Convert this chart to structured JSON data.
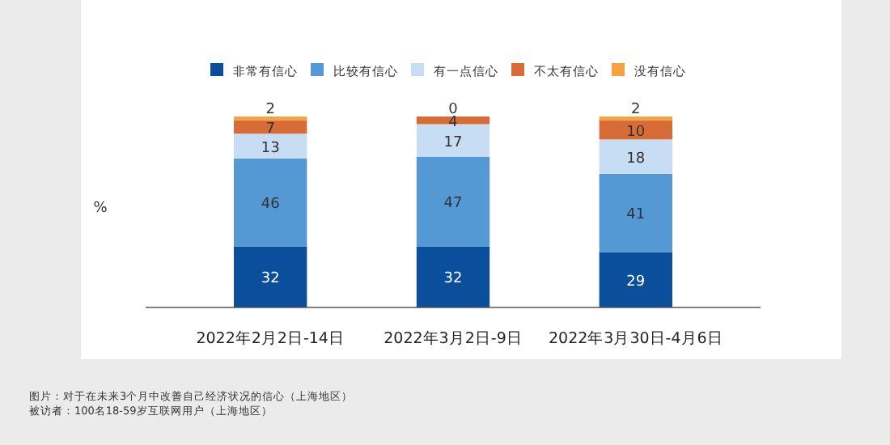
{
  "chart_data": {
    "type": "bar",
    "stacked": true,
    "data_labels": true,
    "ylabel": "%",
    "legend": "top",
    "categories": [
      "2022年2月2日-14日",
      "2022年3月2日-9日",
      "2022年3月30日-4月6日"
    ],
    "series": [
      {
        "name": "非常有信心",
        "color": "#0b4f9c",
        "values": [
          32,
          32,
          29
        ]
      },
      {
        "name": "比较有信心",
        "color": "#5498d4",
        "values": [
          46,
          47,
          41
        ]
      },
      {
        "name": "有一点信心",
        "color": "#c7ddf3",
        "values": [
          13,
          17,
          18
        ]
      },
      {
        "name": "不太有信心",
        "color": "#d86c36",
        "values": [
          7,
          4,
          10
        ]
      },
      {
        "name": "没有信心",
        "color": "#f5a340",
        "values": [
          2,
          0,
          2
        ]
      }
    ],
    "annotations": [
      "图片：对于在未来3个月中改善自己经济状况的信心（上海地区）",
      "被访者：100名18-59岁互联网用户（上海地区）"
    ]
  }
}
